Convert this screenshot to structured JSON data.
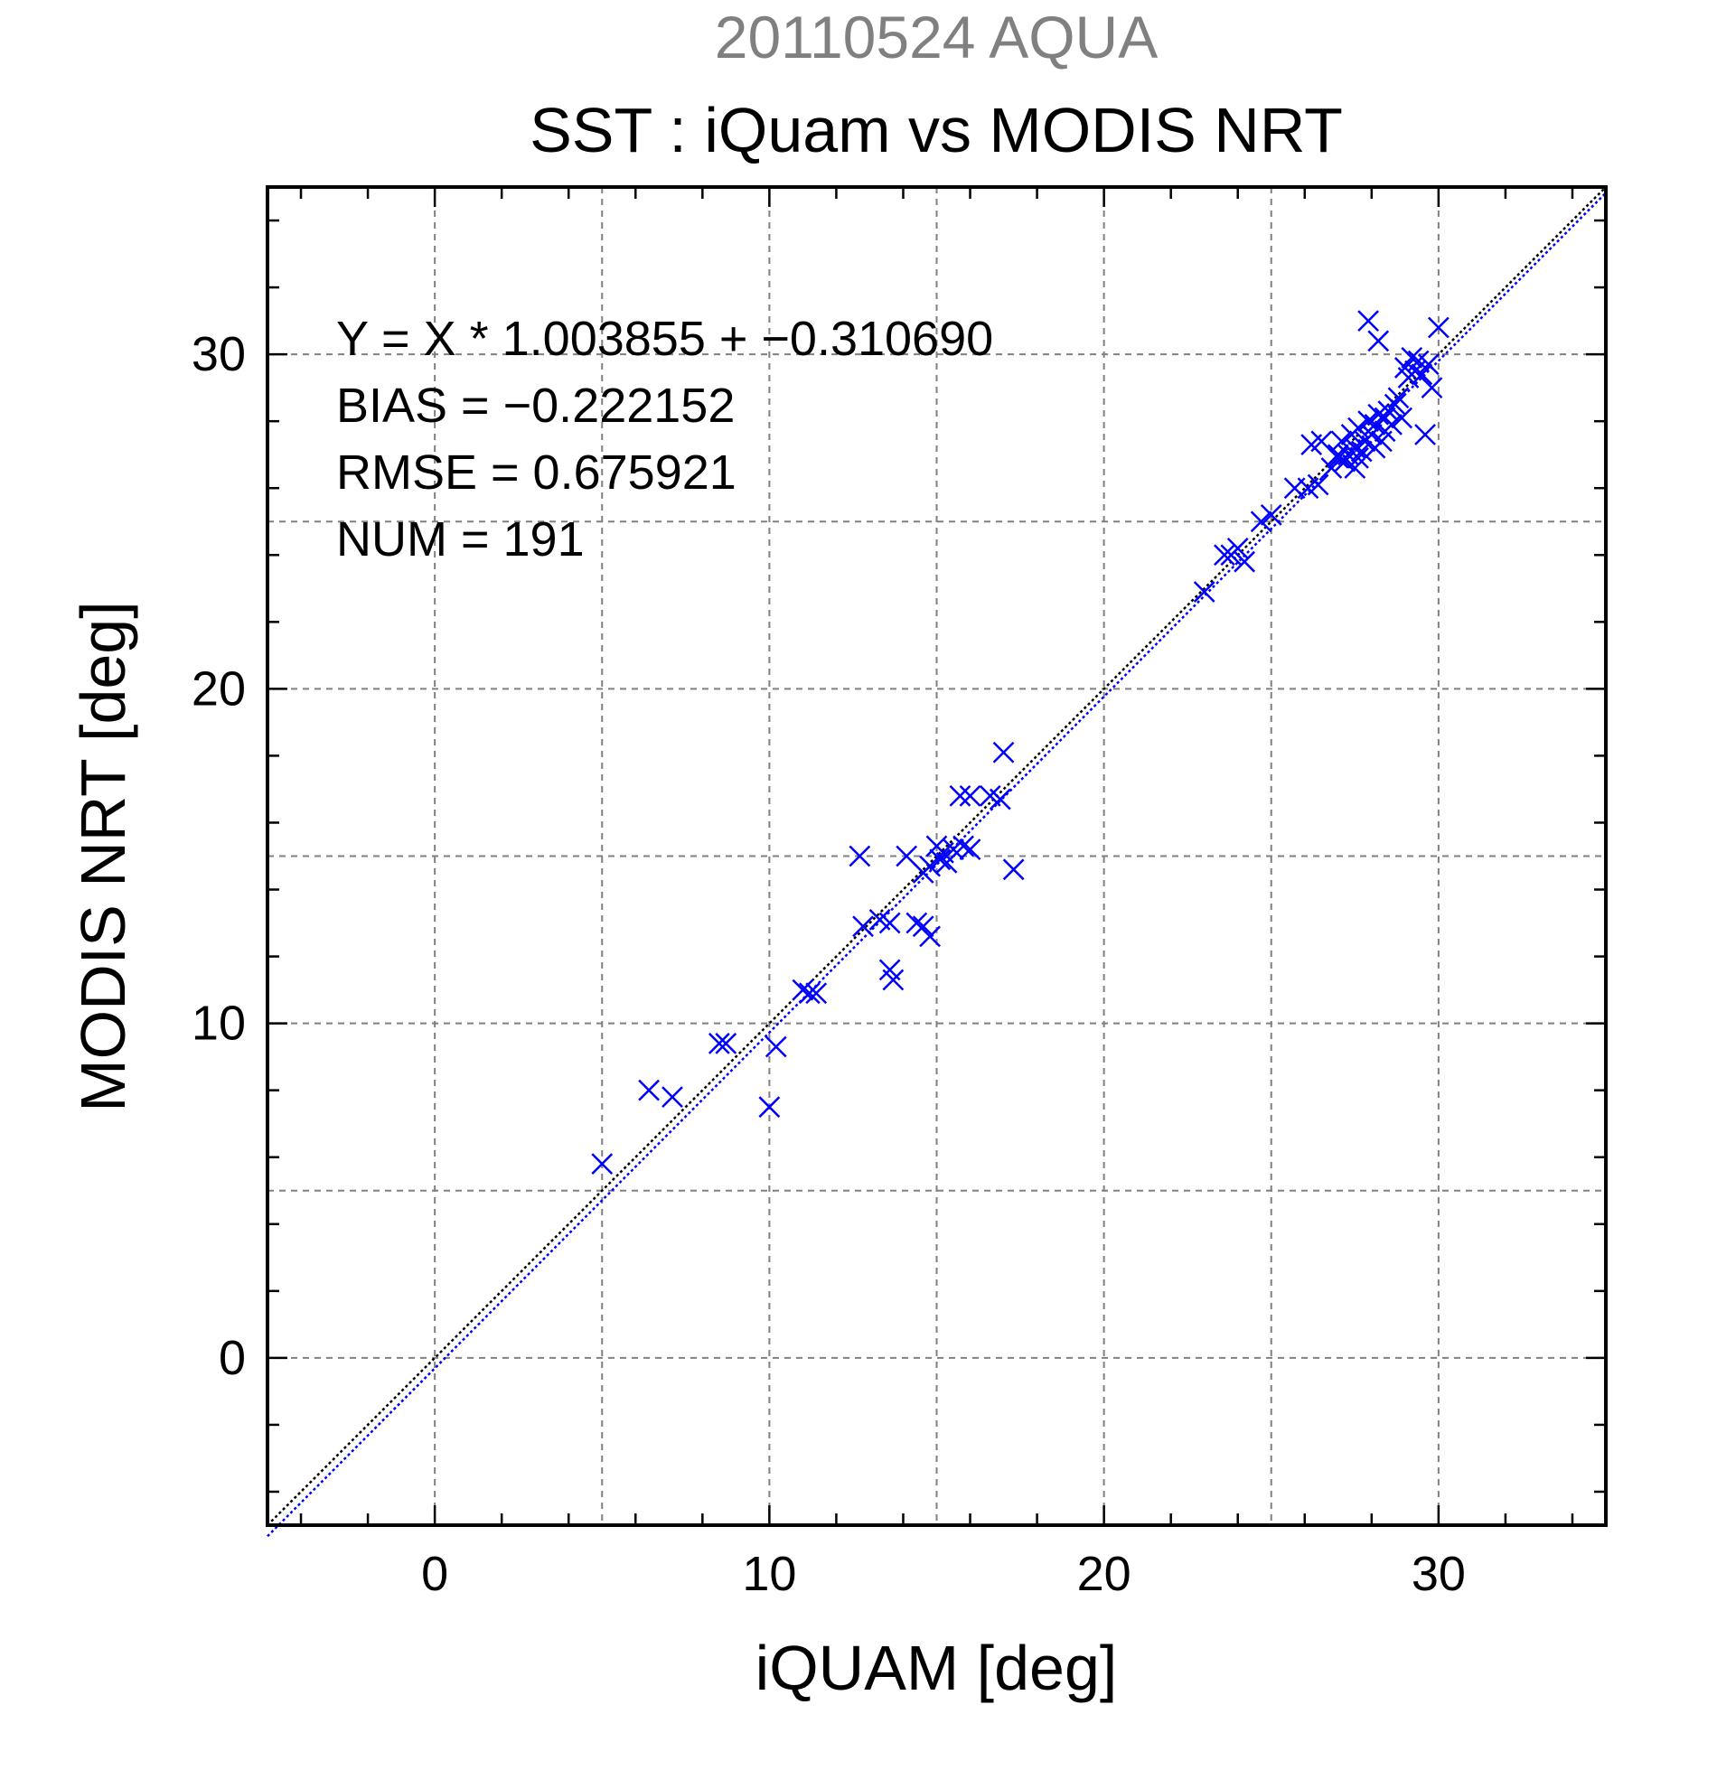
{
  "chart_data": {
    "type": "scatter",
    "supertitle": "20110524 AQUA",
    "title": "SST : iQuam vs MODIS NRT",
    "xlabel": "iQUAM [deg]",
    "ylabel": "MODIS NRT [deg]",
    "xlim": [
      -5,
      35
    ],
    "ylim": [
      -5,
      35
    ],
    "x_ticks": [
      0,
      10,
      20,
      30
    ],
    "y_ticks": [
      0,
      10,
      20,
      30
    ],
    "x_tick_labels": [
      "0",
      "10",
      "20",
      "30"
    ],
    "y_tick_labels": [
      "0",
      "10",
      "20",
      "30"
    ],
    "grid": true,
    "grid_step": 5,
    "annotations": [
      "Y = X * 1.003855 + −0.310690",
      "BIAS = −0.222152",
      "RMSE = 0.675921",
      "NUM = 191"
    ],
    "colors": {
      "points": "#0000ff",
      "one_to_one_line": "#000000",
      "fit_line": "#0000ff",
      "grid": "#808080",
      "supertitle": "#808080"
    },
    "lines": [
      {
        "kind": "one-to-one",
        "slope": 1.0,
        "intercept": 0.0
      },
      {
        "kind": "regression",
        "slope": 1.003855,
        "intercept": -0.31069
      }
    ],
    "series": [
      {
        "marker": "x",
        "points": [
          [
            5.0,
            5.8
          ],
          [
            6.4,
            8.0
          ],
          [
            7.1,
            7.8
          ],
          [
            8.5,
            9.4
          ],
          [
            8.7,
            9.4
          ],
          [
            10.0,
            7.5
          ],
          [
            10.2,
            9.3
          ],
          [
            11.0,
            11.0
          ],
          [
            11.2,
            10.9
          ],
          [
            11.4,
            10.9
          ],
          [
            12.7,
            15.0
          ],
          [
            12.8,
            12.9
          ],
          [
            13.3,
            13.1
          ],
          [
            13.6,
            13.0
          ],
          [
            13.6,
            11.6
          ],
          [
            13.7,
            11.3
          ],
          [
            14.1,
            15.0
          ],
          [
            14.4,
            13.0
          ],
          [
            14.6,
            12.9
          ],
          [
            14.8,
            12.6
          ],
          [
            14.6,
            14.5
          ],
          [
            14.8,
            14.7
          ],
          [
            15.0,
            15.3
          ],
          [
            15.1,
            14.9
          ],
          [
            15.2,
            15.1
          ],
          [
            15.3,
            14.8
          ],
          [
            15.5,
            15.2
          ],
          [
            15.8,
            15.3
          ],
          [
            16.0,
            15.2
          ],
          [
            15.7,
            16.8
          ],
          [
            16.0,
            16.8
          ],
          [
            16.6,
            16.8
          ],
          [
            16.9,
            16.7
          ],
          [
            17.0,
            18.1
          ],
          [
            17.3,
            14.6
          ],
          [
            23.0,
            22.9
          ],
          [
            23.6,
            24.0
          ],
          [
            23.8,
            24.0
          ],
          [
            24.0,
            24.2
          ],
          [
            24.2,
            23.8
          ],
          [
            24.7,
            25.0
          ],
          [
            25.0,
            25.2
          ],
          [
            25.7,
            26.0
          ],
          [
            26.1,
            26.0
          ],
          [
            26.4,
            26.1
          ],
          [
            26.2,
            27.3
          ],
          [
            26.5,
            27.4
          ],
          [
            26.8,
            26.6
          ],
          [
            27.0,
            26.9
          ],
          [
            27.1,
            27.4
          ],
          [
            27.2,
            26.8
          ],
          [
            27.3,
            27.0
          ],
          [
            27.4,
            27.6
          ],
          [
            27.5,
            26.6
          ],
          [
            27.5,
            27.2
          ],
          [
            27.6,
            27.8
          ],
          [
            27.7,
            27.1
          ],
          [
            27.8,
            27.4
          ],
          [
            27.9,
            28.0
          ],
          [
            27.9,
            31.0
          ],
          [
            28.0,
            27.6
          ],
          [
            28.1,
            27.9
          ],
          [
            28.2,
            28.2
          ],
          [
            28.2,
            30.4
          ],
          [
            28.3,
            27.4
          ],
          [
            28.4,
            28.1
          ],
          [
            28.4,
            27.7
          ],
          [
            28.5,
            28.3
          ],
          [
            28.6,
            27.9
          ],
          [
            28.7,
            28.5
          ],
          [
            28.8,
            28.7
          ],
          [
            28.9,
            28.1
          ],
          [
            29.0,
            29.6
          ],
          [
            29.1,
            29.3
          ],
          [
            29.2,
            29.9
          ],
          [
            29.3,
            29.5
          ],
          [
            29.4,
            29.8
          ],
          [
            29.5,
            29.4
          ],
          [
            29.6,
            27.6
          ],
          [
            29.7,
            29.7
          ],
          [
            29.8,
            29.0
          ],
          [
            30.0,
            30.8
          ],
          [
            27.0,
            27.0
          ],
          [
            27.6,
            26.9
          ],
          [
            28.1,
            27.2
          ]
        ]
      }
    ]
  }
}
